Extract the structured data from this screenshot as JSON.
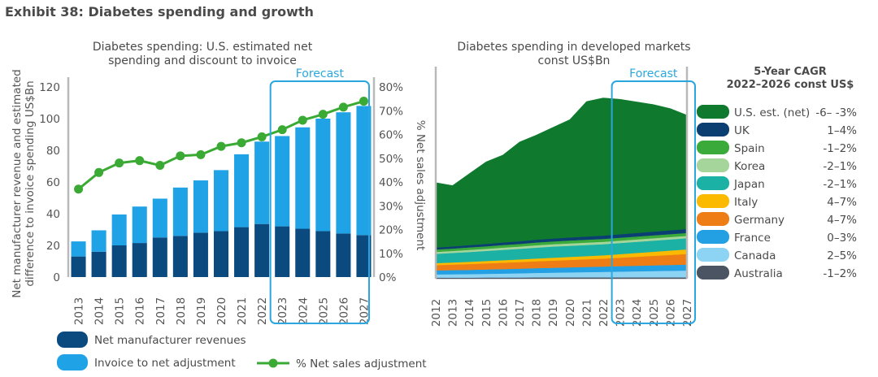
{
  "exhibit_title": "Exhibit 38: Diabetes spending and growth",
  "forecast_label": "Forecast",
  "chart_data": [
    {
      "type": "bar",
      "title_lines": [
        "Diabetes spending: U.S. estimated net",
        "spending and discount to invoice"
      ],
      "ylabel_lines": [
        "Net manufacturer revenue and estimated",
        "difference to invoice spending US$Bn"
      ],
      "y2label": "% Net sales adjustment",
      "categories": [
        "2013",
        "2014",
        "2015",
        "2016",
        "2017",
        "2018",
        "2019",
        "2020",
        "2021",
        "2022",
        "2023",
        "2024",
        "2025",
        "2026",
        "2027"
      ],
      "ylim": [
        0,
        120
      ],
      "yticks": [
        "0",
        "20",
        "40",
        "60",
        "80",
        "100",
        "120"
      ],
      "y2lim": [
        0,
        80
      ],
      "y2ticks": [
        "0%",
        "10%",
        "20%",
        "30%",
        "40%",
        "50%",
        "60%",
        "70%",
        "80%"
      ],
      "forecast_from": "2023",
      "series": [
        {
          "name": "Net manufacturer revenues",
          "kind": "stacked-bar",
          "color": "#0b4a7f",
          "values": [
            13,
            16,
            20,
            21.5,
            25,
            26,
            28,
            29,
            31.5,
            33.5,
            32,
            30.5,
            29,
            27.5,
            26.5
          ]
        },
        {
          "name": "Invoice to net adjustment",
          "kind": "stacked-bar",
          "color": "#1fa2e6",
          "values": [
            9.5,
            13.5,
            19.5,
            23,
            24.5,
            30.5,
            33,
            38.5,
            46,
            52,
            57,
            64,
            71,
            76.5,
            81.5
          ]
        },
        {
          "name": "% Net sales adjustment",
          "kind": "line",
          "axis": "y2",
          "color": "#3aaa35",
          "values": [
            37,
            44,
            48,
            49,
            47,
            51,
            51.5,
            55,
            56.5,
            59,
            62,
            66,
            68.5,
            71.5,
            74
          ]
        }
      ]
    },
    {
      "type": "area",
      "title_lines": [
        "Diabetes spending in developed markets",
        "const US$Bn"
      ],
      "categories": [
        "2012",
        "2013",
        "2014",
        "2015",
        "2016",
        "2017",
        "2018",
        "2019",
        "2020",
        "2021",
        "2022",
        "2023",
        "2024",
        "2025",
        "2026",
        "2027"
      ],
      "forecast_from": "2023",
      "cagr_header_lines": [
        "5-Year CAGR",
        "2022–2026 const US$"
      ],
      "series": [
        {
          "name": "Australia",
          "cagr": "-1–2%",
          "color": "#4b5463",
          "values": [
            0.8,
            0.8,
            0.8,
            0.9,
            0.9,
            0.9,
            1.0,
            1.0,
            1.0,
            1.0,
            1.0,
            1.0,
            1.0,
            1.0,
            1.0,
            1.0
          ]
        },
        {
          "name": "Canada",
          "cagr": "2–5%",
          "color": "#8dd3f3",
          "values": [
            2.5,
            2.6,
            2.7,
            2.8,
            3.0,
            3.2,
            3.4,
            3.6,
            3.8,
            4.0,
            4.2,
            4.4,
            4.6,
            4.8,
            5.0,
            5.2
          ]
        },
        {
          "name": "France",
          "cagr": "0–3%",
          "color": "#22a0e3",
          "values": [
            3.0,
            3.1,
            3.2,
            3.3,
            3.4,
            3.5,
            3.6,
            3.7,
            3.8,
            3.9,
            4.0,
            4.1,
            4.2,
            4.3,
            4.4,
            4.5
          ]
        },
        {
          "name": "Germany",
          "cagr": "4–7%",
          "color": "#ee7d16",
          "values": [
            4.0,
            4.2,
            4.4,
            4.6,
            4.8,
            5.0,
            5.2,
            5.4,
            5.6,
            5.8,
            6.0,
            6.4,
            6.8,
            7.2,
            7.6,
            8.0
          ]
        },
        {
          "name": "Italy",
          "cagr": "4–7%",
          "color": "#fbb900",
          "values": [
            1.5,
            1.6,
            1.7,
            1.8,
            1.9,
            2.0,
            2.1,
            2.2,
            2.3,
            2.4,
            2.5,
            2.7,
            2.9,
            3.1,
            3.3,
            3.5
          ]
        },
        {
          "name": "Japan",
          "cagr": "-2–1%",
          "color": "#1bb1a4",
          "values": [
            7.0,
            7.2,
            7.4,
            7.6,
            7.8,
            8.0,
            8.2,
            8.4,
            8.4,
            8.4,
            8.4,
            8.4,
            8.4,
            8.4,
            8.4,
            8.4
          ]
        },
        {
          "name": "Korea",
          "cagr": "-2–1%",
          "color": "#a5d59a",
          "values": [
            1.5,
            1.5,
            1.6,
            1.6,
            1.7,
            1.7,
            1.8,
            1.8,
            1.8,
            1.8,
            1.8,
            1.8,
            1.8,
            1.8,
            1.8,
            1.8
          ]
        },
        {
          "name": "Spain",
          "cagr": "-1–2%",
          "color": "#3aab3a",
          "values": [
            1.8,
            1.8,
            1.9,
            1.9,
            2.0,
            2.0,
            2.1,
            2.1,
            2.2,
            2.2,
            2.2,
            2.2,
            2.2,
            2.2,
            2.2,
            2.2
          ]
        },
        {
          "name": "UK",
          "cagr": "1–4%",
          "color": "#0b3f72",
          "values": [
            1.5,
            1.6,
            1.7,
            1.8,
            1.9,
            2.0,
            2.1,
            2.2,
            2.3,
            2.4,
            2.5,
            2.6,
            2.7,
            2.8,
            2.9,
            3.0
          ]
        },
        {
          "name": "U.S. est. (net)",
          "cagr": "-6– -3%",
          "color": "#0f7a2d",
          "values": [
            49,
            46,
            54,
            62,
            66,
            75,
            79,
            84,
            89,
            102,
            104,
            102,
            99,
            96,
            92,
            86
          ]
        }
      ]
    }
  ]
}
